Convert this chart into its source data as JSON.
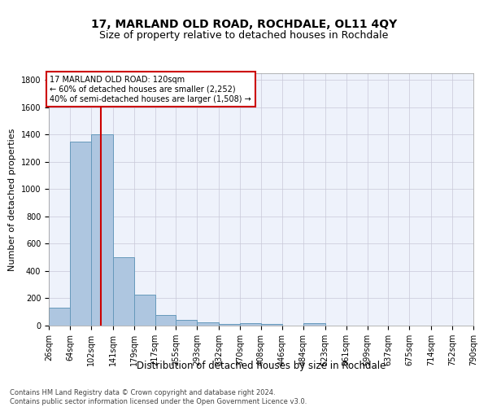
{
  "title": "17, MARLAND OLD ROAD, ROCHDALE, OL11 4QY",
  "subtitle": "Size of property relative to detached houses in Rochdale",
  "xlabel": "Distribution of detached houses by size in Rochdale",
  "ylabel": "Number of detached properties",
  "footer_line1": "Contains HM Land Registry data © Crown copyright and database right 2024.",
  "footer_line2": "Contains public sector information licensed under the Open Government Licence v3.0.",
  "bin_edges": [
    26,
    64,
    102,
    141,
    179,
    217,
    255,
    293,
    332,
    370,
    408,
    446,
    484,
    523,
    561,
    599,
    637,
    675,
    714,
    752,
    790
  ],
  "bin_counts": [
    130,
    1350,
    1400,
    500,
    225,
    75,
    40,
    25,
    10,
    20,
    10,
    0,
    15,
    0,
    0,
    0,
    0,
    0,
    0,
    0
  ],
  "bar_color": "#aec6e0",
  "bar_edge_color": "#6699bb",
  "bar_linewidth": 0.7,
  "property_value": 120,
  "red_line_color": "#cc0000",
  "annotation_text": "17 MARLAND OLD ROAD: 120sqm\n← 60% of detached houses are smaller (2,252)\n40% of semi-detached houses are larger (1,508) →",
  "annotation_box_color": "#ffffff",
  "annotation_box_edge_color": "#cc0000",
  "ylim": [
    0,
    1850
  ],
  "yticks": [
    0,
    200,
    400,
    600,
    800,
    1000,
    1200,
    1400,
    1600,
    1800
  ],
  "background_color": "#eef2fb",
  "grid_color": "#c8c8d8",
  "title_fontsize": 10,
  "subtitle_fontsize": 9,
  "ylabel_fontsize": 8,
  "xlabel_fontsize": 8.5,
  "tick_fontsize": 7,
  "annotation_fontsize": 7,
  "footer_fontsize": 6
}
